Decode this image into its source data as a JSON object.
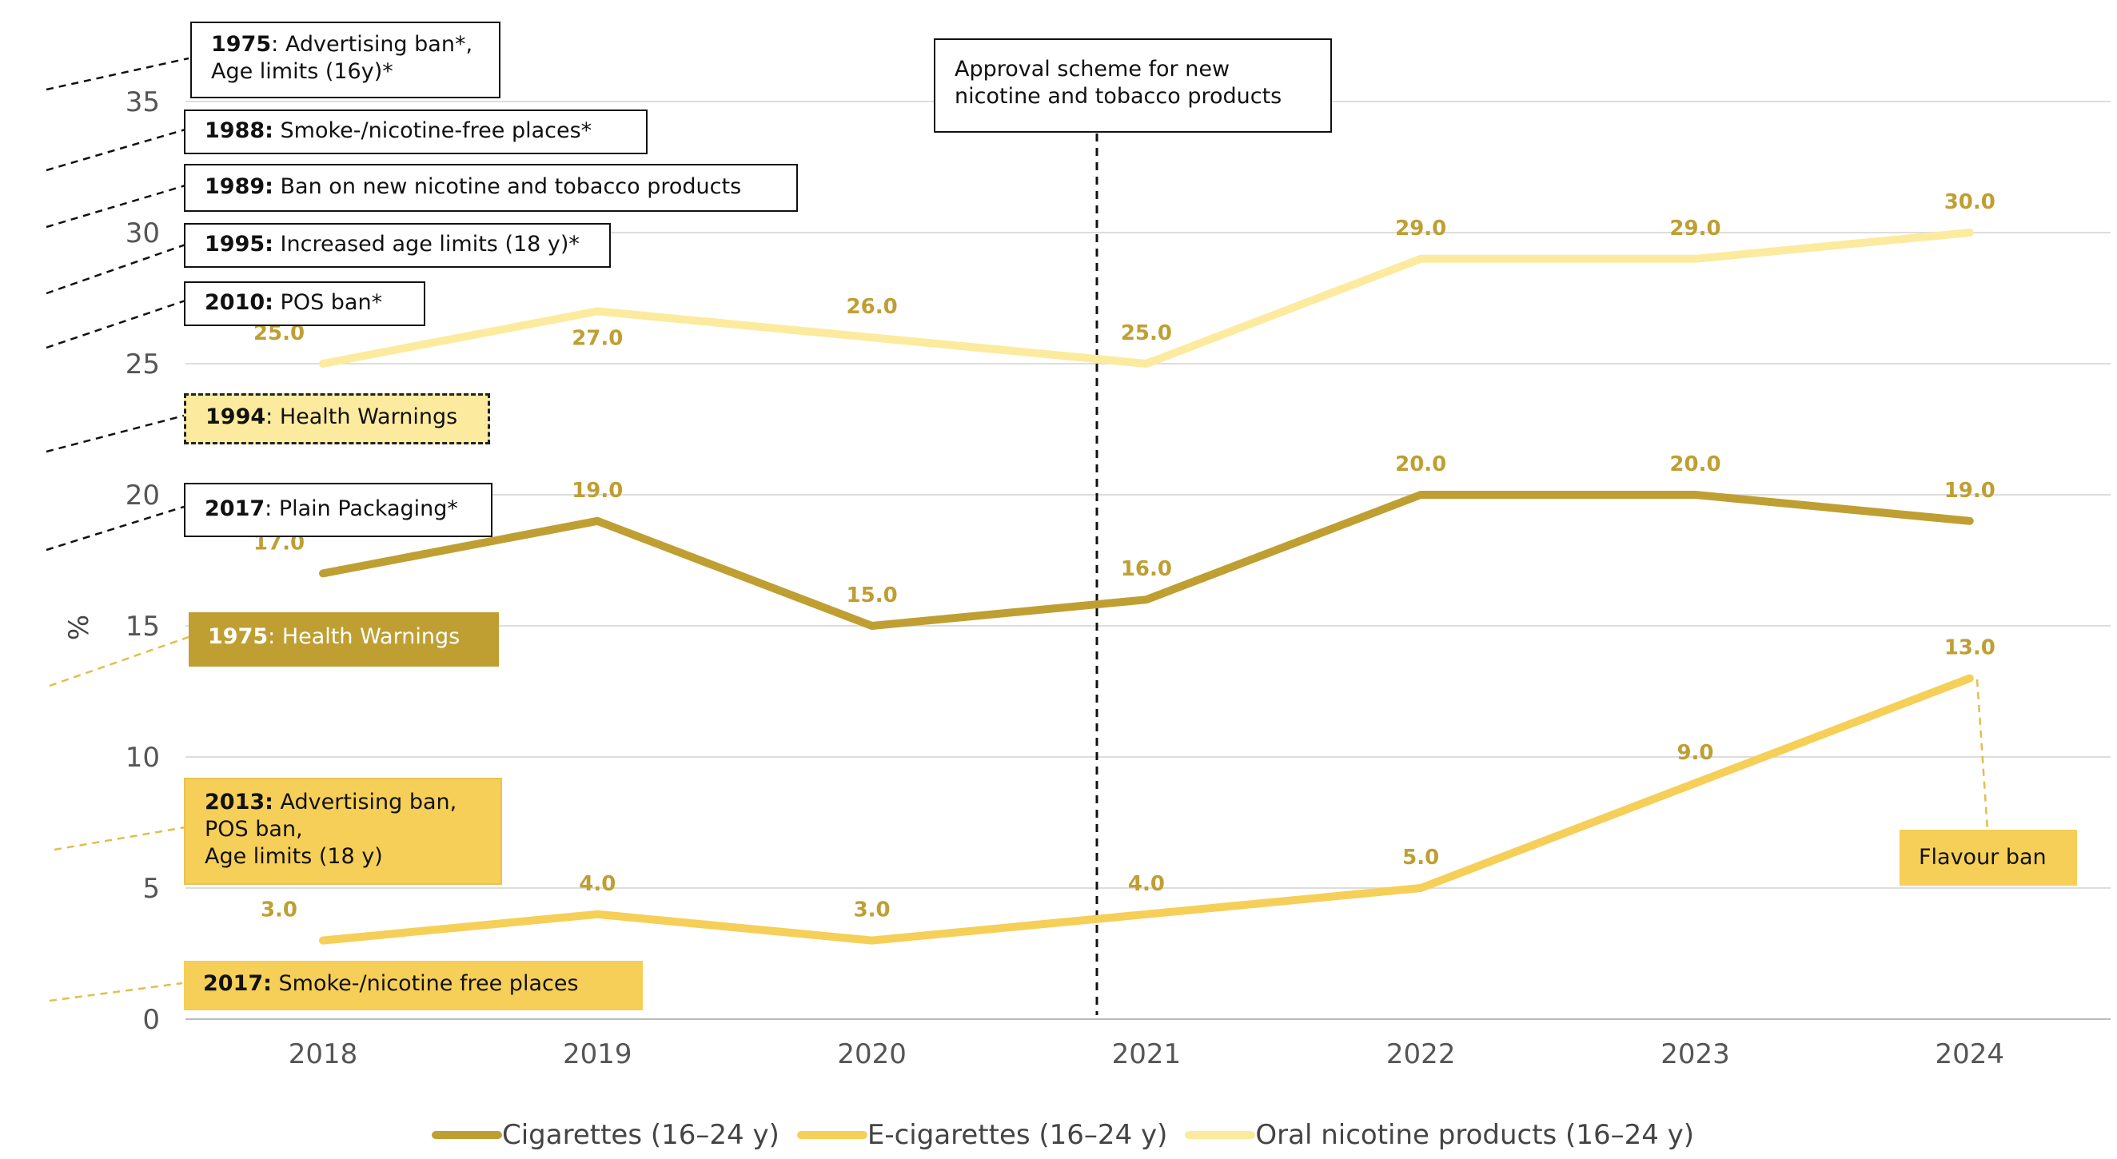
{
  "chart_data": {
    "type": "line",
    "title": "",
    "xlabel": "",
    "ylabel": "%",
    "categories": [
      "2018",
      "2019",
      "2020",
      "2021",
      "2022",
      "2023",
      "2024"
    ],
    "ylim": [
      0,
      35
    ],
    "yticks": [
      0,
      5,
      10,
      15,
      20,
      25,
      30,
      35
    ],
    "grid": "horizontal",
    "series": [
      {
        "name": "Cigarettes (16–24 y)",
        "color": "#BF9F32",
        "values": [
          17,
          19,
          15,
          16,
          20,
          20,
          19
        ],
        "labels": [
          "17.0",
          "19.0",
          "15.0",
          "16.0",
          "20.0",
          "20.0",
          "19.0"
        ]
      },
      {
        "name": "E-cigarettes (16–24 y)",
        "color": "#F5CF57",
        "values": [
          3,
          4,
          3,
          4,
          5,
          9,
          13
        ],
        "labels": [
          "3.0",
          "4.0",
          "3.0",
          "4.0",
          "5.0",
          "9.0",
          "13.0"
        ]
      },
      {
        "name": "Oral nicotine products (16–24 y)",
        "color": "#FCEB9E",
        "values": [
          25,
          27,
          26,
          25,
          29,
          29,
          30
        ],
        "labels": [
          "25.0",
          "27.0",
          "26.0",
          "25.0",
          "29.0",
          "29.0",
          "30.0"
        ]
      }
    ],
    "vertical_marker": {
      "x": 2020.85,
      "label": "Approval scheme for new nicotine and tobacco products"
    },
    "annotations": [
      {
        "id": "a1",
        "year": "1975",
        "text": ": Advertising ban*,",
        "line2": "Age limits (16y)*"
      },
      {
        "id": "a2",
        "year": "1988:",
        "text": " Smoke-/nicotine-free places*"
      },
      {
        "id": "a3",
        "year": "1989:",
        "text": " Ban on new nicotine and tobacco products"
      },
      {
        "id": "a4",
        "year": "1995:",
        "text": " Increased age limits (18 y)*"
      },
      {
        "id": "a5",
        "year": "2010:",
        "text": " POS ban*"
      },
      {
        "id": "a6",
        "year": "1994",
        "text": ": Health Warnings"
      },
      {
        "id": "a7",
        "year": "2017",
        "text": ": Plain Packaging*"
      },
      {
        "id": "a8",
        "year": "1975",
        "text": ": Health Warnings"
      },
      {
        "id": "a9",
        "year": "2013:",
        "text": " Advertising ban,",
        "line2": "POS ban,",
        "line3": "Age limits (18 y)"
      },
      {
        "id": "a10",
        "year": "2017:",
        "text": " Smoke-/nicotine free places"
      },
      {
        "id": "a11",
        "year": "",
        "text": "Flavour ban"
      }
    ]
  }
}
